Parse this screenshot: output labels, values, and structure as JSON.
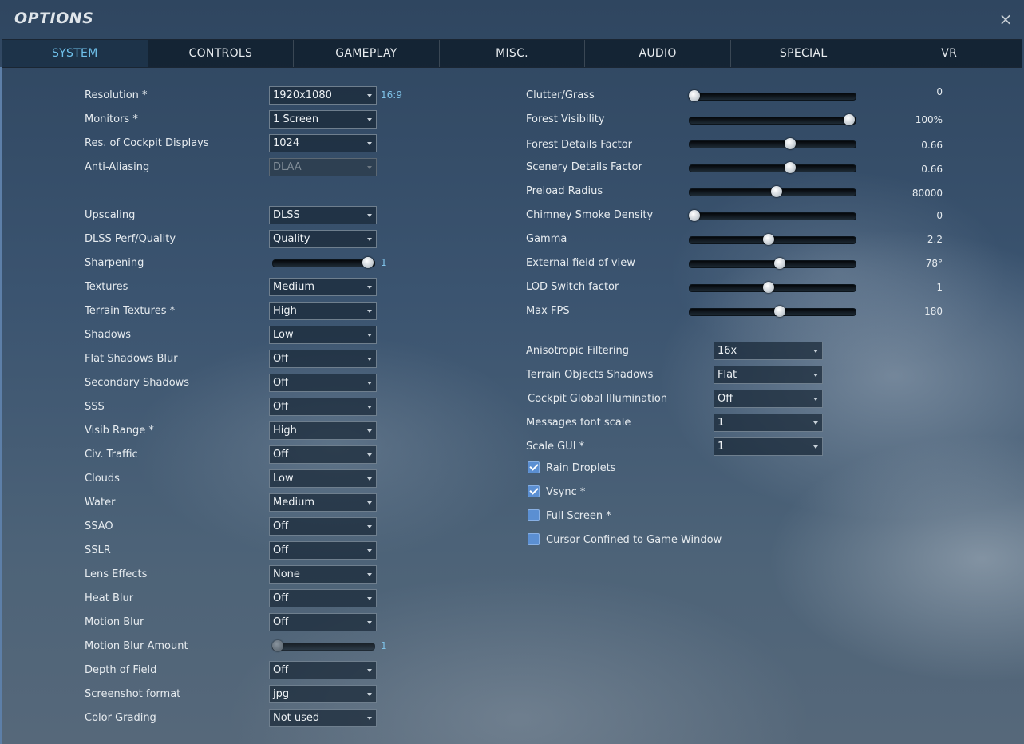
{
  "window": {
    "title": "OPTIONS",
    "close_glyph": "×"
  },
  "tabs": [
    {
      "label": "SYSTEM",
      "active": true
    },
    {
      "label": "CONTROLS"
    },
    {
      "label": "GAMEPLAY"
    },
    {
      "label": "MISC."
    },
    {
      "label": "AUDIO"
    },
    {
      "label": "SPECIAL"
    },
    {
      "label": "VR"
    }
  ],
  "left": {
    "resolution": {
      "label": "Resolution *",
      "value": "1920x1080",
      "aspect": "16:9"
    },
    "monitors": {
      "label": "Monitors *",
      "value": "1 Screen"
    },
    "cockpit_displays": {
      "label": "Res. of Cockpit Displays",
      "value": "1024"
    },
    "anti_aliasing": {
      "label": "Anti-Aliasing",
      "value": "DLAA"
    },
    "upscaling": {
      "label": "Upscaling",
      "value": "DLSS"
    },
    "dlss_perf": {
      "label": "DLSS Perf/Quality",
      "value": "Quality"
    },
    "sharpening": {
      "label": "Sharpening",
      "value": "1",
      "level": 1.0
    },
    "textures": {
      "label": "Textures",
      "value": "Medium"
    },
    "terrain_textures": {
      "label": "Terrain Textures *",
      "value": "High"
    },
    "shadows": {
      "label": "Shadows",
      "value": "Low"
    },
    "flat_shadows_blur": {
      "label": "Flat Shadows Blur",
      "value": "Off"
    },
    "secondary_shadows": {
      "label": "Secondary Shadows",
      "value": "Off"
    },
    "sss": {
      "label": "SSS",
      "value": "Off"
    },
    "visib_range": {
      "label": "Visib Range *",
      "value": "High"
    },
    "civ_traffic": {
      "label": "Civ. Traffic",
      "value": "Off"
    },
    "clouds": {
      "label": "Clouds",
      "value": "Low"
    },
    "water": {
      "label": "Water",
      "value": "Medium"
    },
    "ssao": {
      "label": "SSAO",
      "value": "Off"
    },
    "sslr": {
      "label": "SSLR",
      "value": "Off"
    },
    "lens_effects": {
      "label": "Lens Effects",
      "value": "None"
    },
    "heat_blur": {
      "label": "Heat Blur",
      "value": "Off"
    },
    "motion_blur": {
      "label": "Motion Blur",
      "value": "Off"
    },
    "motion_blur_amount": {
      "label": "Motion Blur Amount",
      "value": "1",
      "level": 0.0
    },
    "depth_of_field": {
      "label": "Depth of Field",
      "value": "Off"
    },
    "screenshot_format": {
      "label": "Screenshot format",
      "value": "jpg"
    },
    "color_grading": {
      "label": "Color Grading",
      "value": "Not used"
    }
  },
  "right": {
    "clutter": {
      "label": "Clutter/Grass",
      "value": "0",
      "level": 0.0
    },
    "forest_visibility": {
      "label": "Forest Visibility",
      "value": "100%",
      "level": 1.0
    },
    "forest_details": {
      "label": "Forest Details Factor",
      "value": "0.66",
      "level": 0.62
    },
    "scenery_details": {
      "label": "Scenery Details Factor",
      "value": "0.66",
      "level": 0.62
    },
    "preload_radius": {
      "label": "Preload Radius",
      "value": "80000",
      "level": 0.53
    },
    "chimney_smoke": {
      "label": "Chimney Smoke Density",
      "value": "0",
      "level": 0.0
    },
    "gamma": {
      "label": "Gamma",
      "value": "2.2",
      "level": 0.48
    },
    "external_fov": {
      "label": "External field of view",
      "value": "78°",
      "level": 0.55
    },
    "lod_switch": {
      "label": "LOD Switch factor",
      "value": "1",
      "level": 0.48
    },
    "max_fps": {
      "label": "Max FPS",
      "value": "180",
      "level": 0.55
    },
    "anisotropic": {
      "label": "Anisotropic Filtering",
      "value": "16x"
    },
    "terrain_obj_shadows": {
      "label": "Terrain Objects Shadows",
      "value": "Flat"
    },
    "cockpit_gi": {
      "label": "Cockpit Global Illumination",
      "value": "Off"
    },
    "msg_font_scale": {
      "label": "Messages font scale",
      "value": "1"
    },
    "scale_gui": {
      "label": "Scale GUI *",
      "value": "1"
    },
    "rain_droplets": {
      "label": "Rain Droplets",
      "checked": true
    },
    "vsync": {
      "label": "Vsync *",
      "checked": true
    },
    "full_screen": {
      "label": "Full Screen *",
      "checked": false
    },
    "cursor_confined": {
      "label": "Cursor Confined to Game Window",
      "checked": false
    }
  }
}
